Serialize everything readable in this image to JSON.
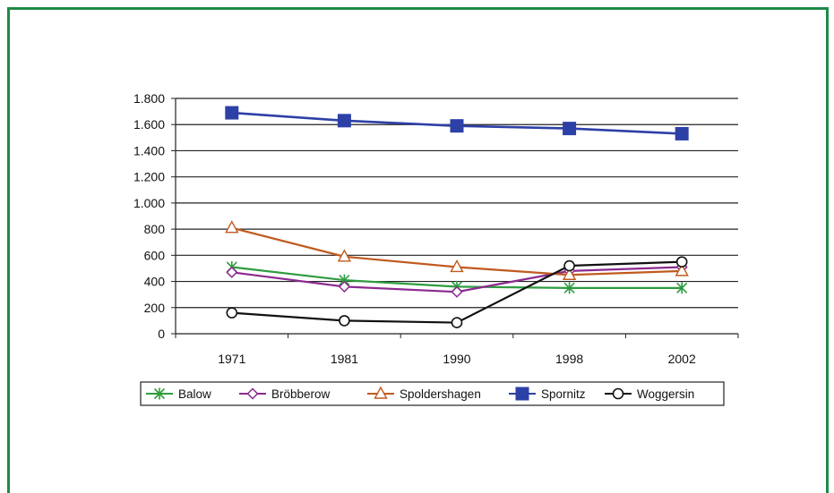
{
  "chart_data": {
    "type": "line",
    "categories": [
      "1971",
      "1981",
      "1990",
      "1998",
      "2002"
    ],
    "ylim": [
      0,
      1800
    ],
    "yticks": [
      0,
      200,
      400,
      600,
      800,
      1000,
      1200,
      1400,
      1600,
      1800
    ],
    "ytick_labels": [
      "0",
      "200",
      "400",
      "600",
      "800",
      "1.000",
      "1.200",
      "1.400",
      "1.600",
      "1.800"
    ],
    "grid": true,
    "legend_position": "bottom",
    "series": [
      {
        "name": "Balow",
        "values": [
          510,
          410,
          360,
          350,
          350
        ],
        "color": "#2e9c3f",
        "marker": "asterisk"
      },
      {
        "name": "Bröbberow",
        "values": [
          470,
          360,
          320,
          480,
          510
        ],
        "color": "#8b2a8f",
        "marker": "diamond"
      },
      {
        "name": "Spoldershagen",
        "values": [
          810,
          590,
          510,
          450,
          480
        ],
        "color": "#c05a1f",
        "marker": "triangle"
      },
      {
        "name": "Spornitz",
        "values": [
          1690,
          1630,
          1590,
          1570,
          1530
        ],
        "color": "#2d40a6",
        "marker": "square"
      },
      {
        "name": "Woggersin",
        "values": [
          160,
          100,
          85,
          520,
          550
        ],
        "color": "#111111",
        "marker": "circle"
      }
    ]
  }
}
